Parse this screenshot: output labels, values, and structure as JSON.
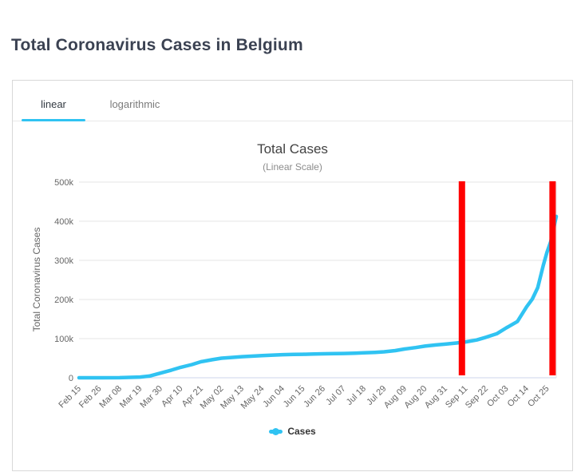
{
  "page": {
    "title": "Total Coronavirus Cases in Belgium"
  },
  "tabs": [
    {
      "label": "linear",
      "active": true
    },
    {
      "label": "logarithmic",
      "active": false
    }
  ],
  "colors": {
    "accent_cyan": "#30c3f2",
    "annotation_red": "#ff0000",
    "grid": "#e6e6e6",
    "axis_line": "#ccd6eb",
    "tick_text": "#666666",
    "title_text": "#3b4252",
    "panel_border": "#d8d8d8"
  },
  "legend": {
    "items": [
      {
        "label": "Cases",
        "color": "#30c3f2"
      }
    ]
  },
  "chart_data": {
    "type": "line",
    "title": "Total Cases",
    "subtitle": "(Linear Scale)",
    "xlabel": "",
    "ylabel": "Total Coronavirus Cases",
    "ylim": [
      0,
      500000
    ],
    "grid": true,
    "legend_position": "bottom",
    "yticks": [
      {
        "value": 0,
        "label": "0"
      },
      {
        "value": 100000,
        "label": "100k"
      },
      {
        "value": 200000,
        "label": "200k"
      },
      {
        "value": 300000,
        "label": "300k"
      },
      {
        "value": 400000,
        "label": "400k"
      },
      {
        "value": 500000,
        "label": "500k"
      }
    ],
    "x_unit": "days since Feb 15",
    "x_range_days": [
      0,
      258
    ],
    "xticks": [
      {
        "day": 0,
        "label": "Feb 15"
      },
      {
        "day": 11,
        "label": "Feb 26"
      },
      {
        "day": 22,
        "label": "Mar 08"
      },
      {
        "day": 33,
        "label": "Mar 19"
      },
      {
        "day": 44,
        "label": "Mar 30"
      },
      {
        "day": 55,
        "label": "Apr 10"
      },
      {
        "day": 66,
        "label": "Apr 21"
      },
      {
        "day": 77,
        "label": "May 02"
      },
      {
        "day": 88,
        "label": "May 13"
      },
      {
        "day": 99,
        "label": "May 24"
      },
      {
        "day": 110,
        "label": "Jun 04"
      },
      {
        "day": 121,
        "label": "Jun 15"
      },
      {
        "day": 132,
        "label": "Jun 26"
      },
      {
        "day": 143,
        "label": "Jul 07"
      },
      {
        "day": 154,
        "label": "Jul 18"
      },
      {
        "day": 165,
        "label": "Jul 29"
      },
      {
        "day": 176,
        "label": "Aug 09"
      },
      {
        "day": 187,
        "label": "Aug 20"
      },
      {
        "day": 198,
        "label": "Aug 31"
      },
      {
        "day": 209,
        "label": "Sep 11"
      },
      {
        "day": 220,
        "label": "Sep 22"
      },
      {
        "day": 231,
        "label": "Oct 03"
      },
      {
        "day": 242,
        "label": "Oct 14"
      },
      {
        "day": 253,
        "label": "Oct 25"
      }
    ],
    "series": [
      {
        "name": "Cases",
        "color": "#30c3f2",
        "line_width": 4.5,
        "points": [
          [
            0,
            1
          ],
          [
            11,
            1
          ],
          [
            22,
            200
          ],
          [
            33,
            1795
          ],
          [
            38,
            4269
          ],
          [
            44,
            11899
          ],
          [
            50,
            19691
          ],
          [
            55,
            26667
          ],
          [
            61,
            33573
          ],
          [
            66,
            40956
          ],
          [
            72,
            46134
          ],
          [
            77,
            49906
          ],
          [
            83,
            52011
          ],
          [
            88,
            53779
          ],
          [
            94,
            55280
          ],
          [
            99,
            56810
          ],
          [
            105,
            58061
          ],
          [
            110,
            58907
          ],
          [
            116,
            59569
          ],
          [
            121,
            60029
          ],
          [
            127,
            60550
          ],
          [
            132,
            61209
          ],
          [
            138,
            61838
          ],
          [
            143,
            62123
          ],
          [
            149,
            62781
          ],
          [
            154,
            63706
          ],
          [
            160,
            64847
          ],
          [
            165,
            66428
          ],
          [
            171,
            69402
          ],
          [
            176,
            73401
          ],
          [
            182,
            77113
          ],
          [
            187,
            80868
          ],
          [
            193,
            83952
          ],
          [
            198,
            85911
          ],
          [
            204,
            88769
          ],
          [
            209,
            91537
          ],
          [
            215,
            96491
          ],
          [
            220,
            103392
          ],
          [
            226,
            112803
          ],
          [
            231,
            127623
          ],
          [
            237,
            143596
          ],
          [
            242,
            181511
          ],
          [
            245,
            200793
          ],
          [
            248,
            230480
          ],
          [
            251,
            287700
          ],
          [
            253,
            321031
          ],
          [
            255,
            347289
          ],
          [
            258,
            412314
          ]
        ]
      }
    ],
    "annotations": [
      {
        "type": "vertical-line",
        "day": 207,
        "position_date": "Sep 09",
        "color": "#ff0000",
        "stroke_width": 8
      },
      {
        "type": "vertical-line",
        "day": 256,
        "position_date": "Oct 28",
        "color": "#ff0000",
        "stroke_width": 8
      }
    ]
  }
}
